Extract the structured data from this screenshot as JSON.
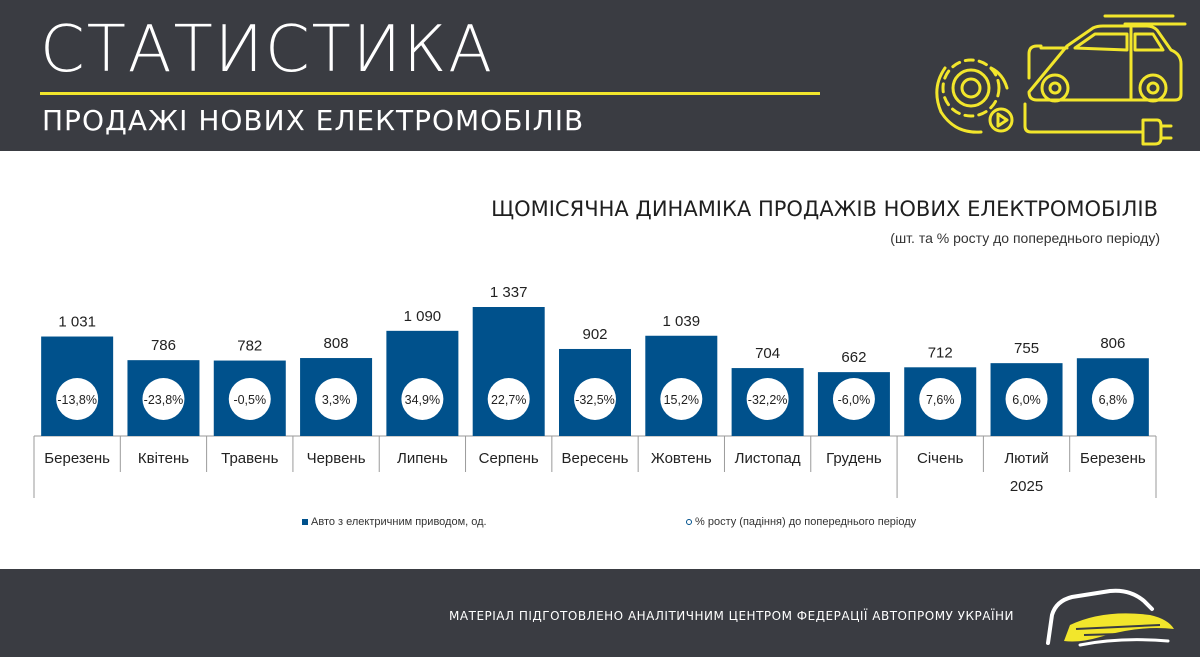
{
  "header": {
    "title": "СТАТИСТИКА",
    "subtitle": "ПРОДАЖІ НОВИХ ЕЛЕКТРОМОБІЛІВ",
    "accent_color": "#f2e62c",
    "background_color": "#3a3c42",
    "icon": "electric-car-gear-icon"
  },
  "chart_data": {
    "type": "bar",
    "title": "ЩОМІСЯЧНА ДИНАМІКА ПРОДАЖІВ НОВИХ ЕЛЕКТРОМОБІЛІВ",
    "subtitle": "(шт. та % росту до попереднього періоду)",
    "categories": [
      "Березень",
      "Квітень",
      "Травень",
      "Червень",
      "Липень",
      "Серпень",
      "Вересень",
      "Жовтень",
      "Листопад",
      "Грудень",
      "Січень",
      "Лютий",
      "Березень"
    ],
    "year_group": {
      "label": "2025",
      "categories": [
        "Січень",
        "Лютий",
        "Березень"
      ]
    },
    "series": [
      {
        "name": "Авто з електричним приводом, од.",
        "color": "#00518c",
        "values": [
          1031,
          786,
          782,
          808,
          1090,
          1337,
          902,
          1039,
          704,
          662,
          712,
          755,
          806
        ],
        "value_labels": [
          "1 031",
          "786",
          "782",
          "808",
          "1 090",
          "1 337",
          "902",
          "1 039",
          "704",
          "662",
          "712",
          "755",
          "806"
        ]
      },
      {
        "name": "% росту (падіння) до попереднього періоду",
        "marker": "circle",
        "values": [
          -13.8,
          -23.8,
          -0.5,
          3.3,
          34.9,
          22.7,
          -32.5,
          15.2,
          -32.2,
          -6.0,
          7.6,
          6.0,
          6.8
        ],
        "value_labels": [
          "-13,8%",
          "-23,8%",
          "-0,5%",
          "3,3%",
          "34,9%",
          "22,7%",
          "-32,5%",
          "15,2%",
          "-32,2%",
          "-6,0%",
          "7,6%",
          "6,0%",
          "6,8%"
        ]
      }
    ]
  },
  "legend": {
    "bar_label": "Авто з електричним приводом, од.",
    "pct_label": "% росту (падіння) до попереднього періоду"
  },
  "footer": {
    "text": "МАТЕРІАЛ ПІДГОТОВЛЕНО АНАЛІТИЧНИМ ЦЕНТРОМ ФЕДЕРАЦІЇ АВТОПРОМУ УКРАЇНИ",
    "logo": "auto-federation-logo-icon"
  }
}
